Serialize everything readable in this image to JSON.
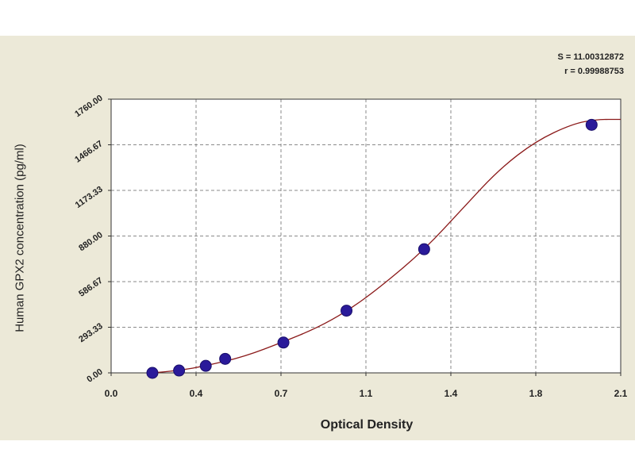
{
  "chart_data": {
    "type": "scatter",
    "xlabel": "Optical Density",
    "ylabel": "Human GPX2 concentration (pg/ml)",
    "xlim": [
      0.0,
      2.1
    ],
    "ylim": [
      0,
      1760
    ],
    "x_ticks": [
      "0.0",
      "0.4",
      "0.7",
      "1.1",
      "1.4",
      "1.8",
      "2.1"
    ],
    "y_ticks": [
      "0.00",
      "293.33",
      "586.67",
      "880.00",
      "1173.33",
      "1466.67",
      "1760.00"
    ],
    "grid": true,
    "stats": {
      "s_label": "S = 11.00312872",
      "r_label": "r = 0.99988753"
    },
    "points": [
      {
        "x": 0.17,
        "y": 0
      },
      {
        "x": 0.28,
        "y": 15
      },
      {
        "x": 0.39,
        "y": 45
      },
      {
        "x": 0.47,
        "y": 90
      },
      {
        "x": 0.71,
        "y": 195
      },
      {
        "x": 0.97,
        "y": 400
      },
      {
        "x": 1.29,
        "y": 795
      },
      {
        "x": 1.98,
        "y": 1595
      }
    ],
    "fit_curve": [
      {
        "x": 0.17,
        "y": 0
      },
      {
        "x": 0.28,
        "y": 15
      },
      {
        "x": 0.39,
        "y": 45
      },
      {
        "x": 0.55,
        "y": 105
      },
      {
        "x": 0.71,
        "y": 200
      },
      {
        "x": 0.85,
        "y": 290
      },
      {
        "x": 0.97,
        "y": 395
      },
      {
        "x": 1.1,
        "y": 540
      },
      {
        "x": 1.29,
        "y": 790
      },
      {
        "x": 1.45,
        "y": 1060
      },
      {
        "x": 1.6,
        "y": 1310
      },
      {
        "x": 1.75,
        "y": 1490
      },
      {
        "x": 1.9,
        "y": 1600
      },
      {
        "x": 2.0,
        "y": 1630
      },
      {
        "x": 2.1,
        "y": 1630
      }
    ],
    "colors": {
      "points": "#2a1a9a",
      "curve": "#8b1a1a",
      "grid": "#8a8a8a",
      "background": "#ece9d8"
    }
  }
}
